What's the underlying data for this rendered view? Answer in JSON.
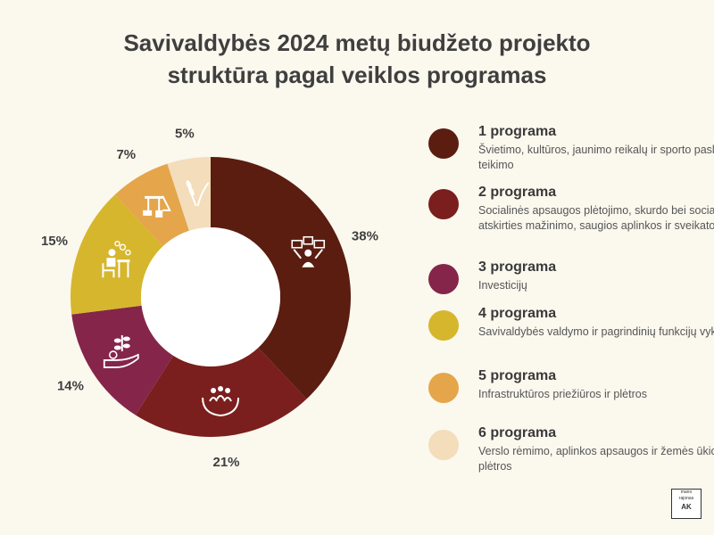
{
  "header": {
    "title_line1": "Savivaldybės 2024 metų biudžeto projekto",
    "title_line2": "struktūra pagal veiklos programas"
  },
  "chart_data": {
    "type": "pie",
    "variant": "donut",
    "start_angle": "12 o'clock",
    "direction": "clockwise",
    "categories": [
      "1 programa",
      "2 programa",
      "3 programa",
      "4 programa",
      "5 programa",
      "6 programa"
    ],
    "values": [
      38,
      21,
      14,
      15,
      7,
      5
    ],
    "labels": [
      "38%",
      "21%",
      "14%",
      "15%",
      "7%",
      "5%"
    ],
    "colors": [
      "#5a1d10",
      "#7a1f1d",
      "#85254a",
      "#d6b62d",
      "#e5a54a",
      "#f3ddba"
    ],
    "icons": [
      "education-icon",
      "community-icon",
      "investment-icon",
      "office-work-icon",
      "infrastructure-icon",
      "agriculture-icon"
    ],
    "legend_position": "right"
  },
  "legend": [
    {
      "name": "1 programa",
      "desc": "Švietimo, kultūros, jaunimo reikalų ir sporto paslaugų teikimo"
    },
    {
      "name": "2 programa",
      "desc": "Socialinės apsaugos plėtojimo, skurdo bei socialinės atskirties mažinimo, saugios aplinkos ir sveikatos"
    },
    {
      "name": "3 programa",
      "desc": "Investicijų"
    },
    {
      "name": "4 programa",
      "desc": "Savivaldybės valdymo ir pagrindinių funkcijų vykdymo"
    },
    {
      "name": "5 programa",
      "desc": "Infrastruktūros priežiūros ir plėtros"
    },
    {
      "name": "6 programa",
      "desc": "Verslo rėmimo, aplinkos apsaugos ir žemės ūkio plėtros"
    }
  ],
  "logo": {
    "line1": "mano",
    "line2": "rajonas",
    "line3": "AK"
  }
}
